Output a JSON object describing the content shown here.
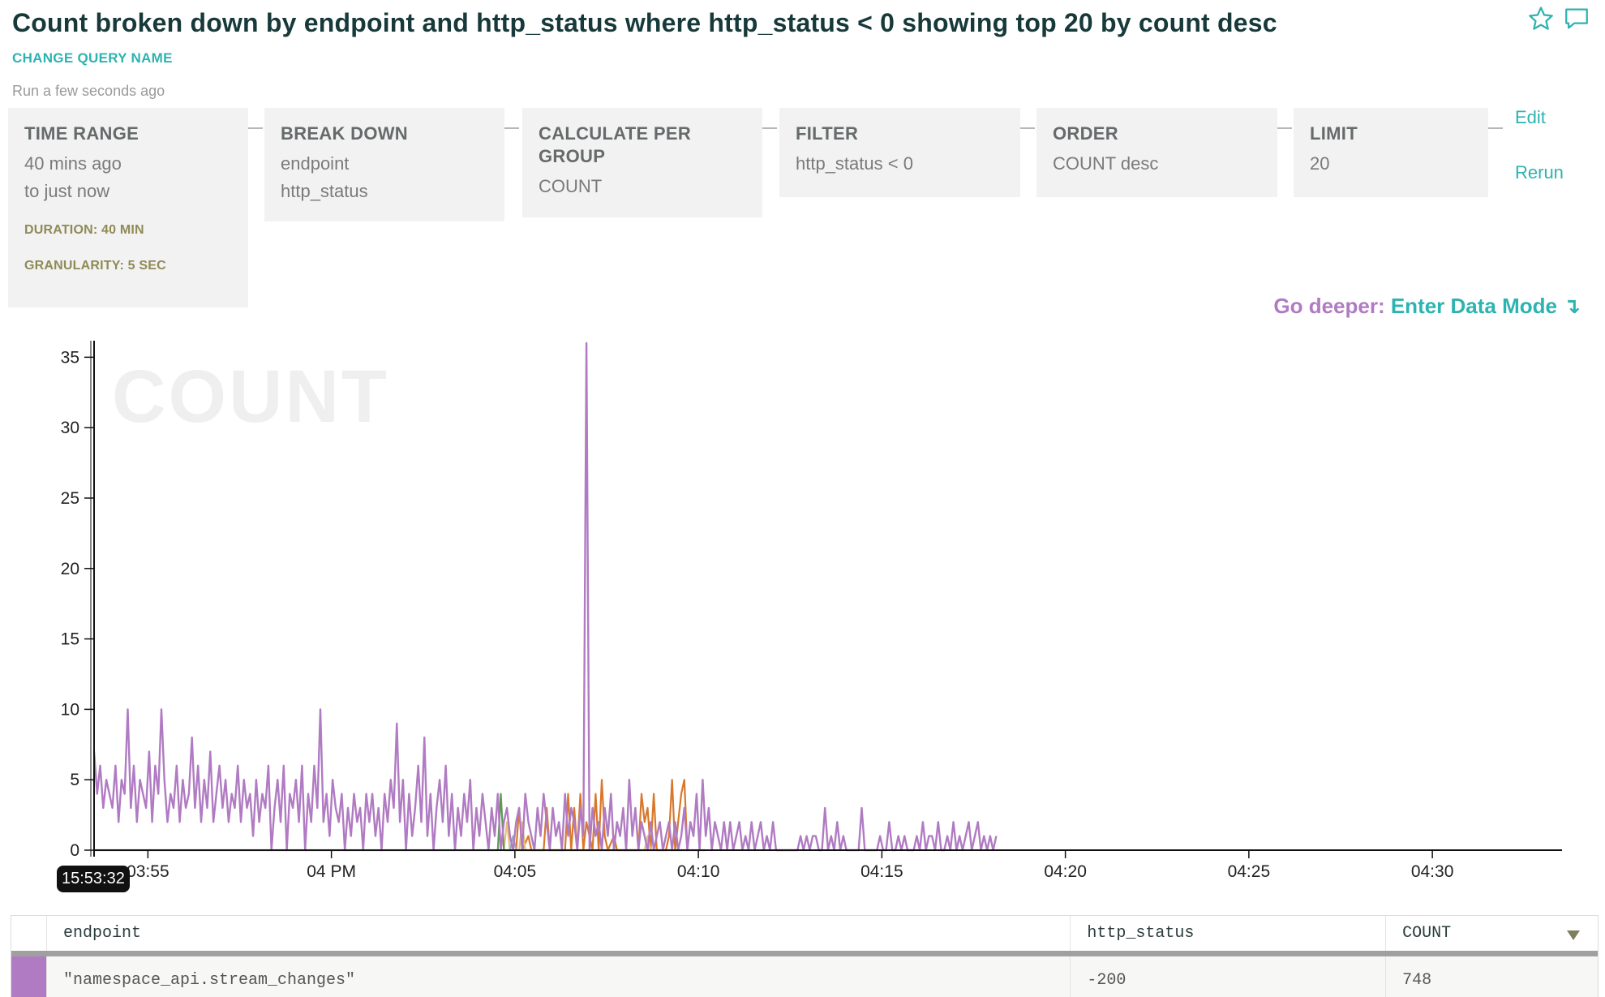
{
  "header": {
    "title": "Count broken down by endpoint and http_status where http_status < 0 showing top 20 by count desc",
    "change_name": "CHANGE QUERY NAME",
    "run_time": "Run a few seconds ago"
  },
  "icons": {
    "star": "star-icon",
    "comment": "comment-icon"
  },
  "query": {
    "time_range": {
      "label": "TIME RANGE",
      "from": "40 mins ago",
      "to": "to just now",
      "duration": "DURATION: 40 MIN",
      "granularity": "GRANULARITY: 5 SEC"
    },
    "break_down": {
      "label": "BREAK DOWN",
      "values": [
        "endpoint",
        "http_status"
      ]
    },
    "calculate": {
      "label_1": "CALCULATE PER",
      "label_2": "GROUP",
      "value": "COUNT"
    },
    "filter": {
      "label": "FILTER",
      "value": "http_status < 0"
    },
    "order": {
      "label": "ORDER",
      "value": "COUNT desc"
    },
    "limit": {
      "label": "LIMIT",
      "value": "20"
    },
    "edit_label": "Edit",
    "rerun_label": "Rerun"
  },
  "deeper": {
    "prefix": "Go deeper:",
    "link": "Enter Data Mode ↴"
  },
  "chart_data": {
    "type": "line",
    "watermark": "COUNT",
    "y_ticks": [
      "0",
      "5",
      "10",
      "15",
      "20",
      "25",
      "30",
      "35"
    ],
    "x_ticks": [
      "03:55",
      "04 PM",
      "04:05",
      "04:10",
      "04:15",
      "04:20",
      "04:25",
      "04:30"
    ],
    "ylim": [
      0,
      36
    ],
    "hover_time": "15:53:32",
    "series": [
      {
        "color": "#b07bc2",
        "interval_sec": 5,
        "start": "03:53:32",
        "values": [
          7,
          4,
          6,
          3,
          5,
          4,
          3,
          6,
          2,
          5,
          4,
          10,
          3,
          6,
          2,
          5,
          4,
          3,
          7,
          2,
          6,
          4,
          10,
          5,
          2,
          4,
          3,
          6,
          2,
          5,
          3,
          4,
          8,
          3,
          6,
          2,
          5,
          3,
          7,
          2,
          4,
          6,
          3,
          5,
          2,
          4,
          3,
          6,
          2,
          5,
          3,
          4,
          1,
          5,
          2,
          4,
          3,
          6,
          0,
          3,
          5,
          2,
          6,
          0,
          4,
          3,
          5,
          2,
          6,
          0,
          4,
          2,
          6,
          3,
          10,
          2,
          4,
          1,
          5,
          3,
          2,
          4,
          0,
          3,
          1,
          4,
          2,
          3,
          0,
          4,
          2,
          4,
          1,
          3,
          0,
          4,
          2,
          5,
          3,
          9,
          2,
          5,
          0,
          4,
          1,
          3,
          6,
          2,
          8,
          1,
          4,
          0,
          3,
          5,
          2,
          6,
          1,
          4,
          0,
          3,
          1,
          4,
          2,
          5,
          0,
          3,
          1,
          4,
          2,
          0,
          3,
          1,
          4,
          0,
          2,
          3,
          1,
          0,
          2,
          3,
          0,
          4,
          2,
          1,
          0,
          3,
          1,
          4,
          2,
          0,
          3,
          1,
          2,
          0,
          4,
          1,
          3,
          2,
          0,
          3,
          1,
          36,
          0,
          3,
          1,
          2,
          0,
          3,
          1,
          4,
          0,
          2,
          1,
          3,
          0,
          5,
          1,
          3,
          0,
          2,
          1,
          0,
          2,
          0,
          1,
          2,
          0,
          1,
          2,
          0,
          2,
          0,
          1,
          3,
          0,
          2,
          1,
          4,
          0,
          5,
          1,
          3,
          0,
          2,
          1,
          0,
          2,
          0,
          2,
          0,
          1,
          2,
          0,
          1,
          0,
          2,
          0,
          1,
          2,
          0,
          1,
          0,
          2,
          0,
          0,
          0,
          0,
          0,
          0,
          0,
          0,
          1,
          0,
          1,
          0,
          1,
          1,
          0,
          0,
          3,
          0,
          1,
          0,
          2,
          0,
          1,
          0,
          0,
          0,
          0,
          0,
          3,
          0,
          0,
          0,
          0,
          0,
          1,
          0,
          0,
          2,
          0,
          0,
          1,
          0,
          1,
          0,
          0,
          0,
          1,
          0,
          2,
          0,
          1,
          1,
          0,
          2,
          0,
          0,
          1,
          0,
          2,
          0,
          1,
          0,
          1,
          2,
          0,
          1,
          2,
          0,
          1,
          0,
          1,
          0,
          1
        ]
      },
      {
        "color": "#d9782d",
        "points": [
          [
            138,
            0
          ],
          [
            139,
            3
          ],
          [
            140,
            0
          ],
          [
            142,
            1
          ],
          [
            143,
            0
          ],
          [
            147,
            0
          ],
          [
            148,
            3
          ],
          [
            149,
            0
          ],
          [
            154,
            0
          ],
          [
            155,
            4
          ],
          [
            156,
            0
          ],
          [
            157,
            3
          ],
          [
            158,
            0
          ],
          [
            159,
            4
          ],
          [
            160,
            0
          ],
          [
            161,
            2
          ],
          [
            162,
            1
          ],
          [
            163,
            0
          ],
          [
            164,
            4
          ],
          [
            165,
            0
          ],
          [
            166,
            5
          ],
          [
            167,
            1
          ],
          [
            168,
            0
          ],
          [
            170,
            1
          ],
          [
            171,
            0
          ],
          [
            178,
            0
          ],
          [
            179,
            4
          ],
          [
            180,
            2
          ],
          [
            181,
            3
          ],
          [
            182,
            0
          ],
          [
            183,
            4
          ],
          [
            184,
            0
          ],
          [
            187,
            0
          ],
          [
            188,
            1
          ],
          [
            189,
            5
          ],
          [
            190,
            0
          ],
          [
            191,
            2
          ],
          [
            192,
            4
          ],
          [
            193,
            5
          ],
          [
            194,
            0
          ]
        ]
      },
      {
        "color": "#e8c27a",
        "points": [
          [
            134,
            0
          ],
          [
            135,
            2
          ],
          [
            136,
            0
          ],
          [
            139,
            0
          ],
          [
            140,
            2
          ],
          [
            141,
            0
          ],
          [
            180,
            0
          ],
          [
            181,
            1
          ],
          [
            182,
            0
          ]
        ]
      },
      {
        "color": "#5e9a57",
        "points": [
          [
            0,
            0
          ],
          [
            132,
            0
          ],
          [
            133,
            4
          ],
          [
            134,
            0
          ],
          [
            200,
            0
          ]
        ]
      },
      {
        "color": "#8fb0c7",
        "points": [
          [
            136,
            0
          ],
          [
            137,
            1
          ],
          [
            138,
            0
          ]
        ]
      }
    ]
  },
  "table": {
    "headers": [
      "endpoint",
      "http_status",
      "COUNT"
    ],
    "rows": [
      {
        "color": "#b07bc2",
        "endpoint": "\"namespace_api.stream_changes\"",
        "http_status": "-200",
        "count": "748"
      }
    ]
  }
}
